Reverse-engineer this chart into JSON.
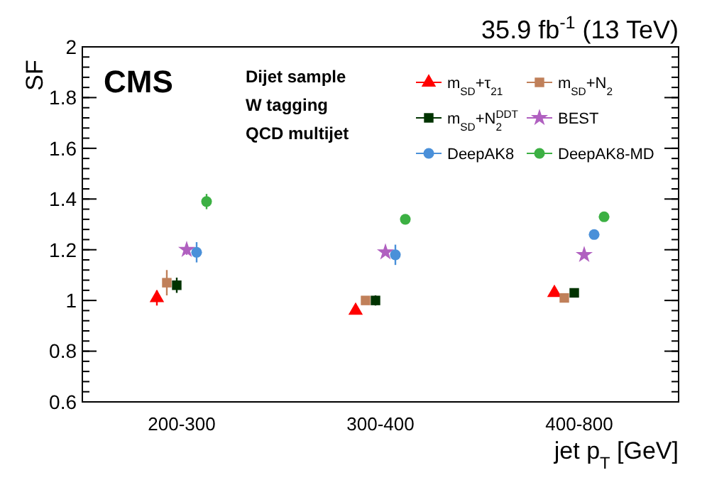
{
  "chart_data": {
    "type": "scatter",
    "title": "35.9 fb$^{-1}$ (13 TeV)",
    "xlabel": "jet p$_{T}$ [GeV]",
    "ylabel": "SF",
    "annotations": [
      "CMS",
      "Dijet sample",
      "W tagging",
      "QCD multijet"
    ],
    "categories": [
      "200-300",
      "300-400",
      "400-800"
    ],
    "ylim": [
      0.6,
      2
    ],
    "yticks": [
      0.6,
      0.8,
      {
        "value": 1,
        "label": "1"
      },
      1.2,
      1.4,
      1.6,
      1.8,
      {
        "value": 2,
        "label": "2"
      }
    ],
    "grid": false,
    "legend": "top right",
    "series": [
      {
        "name": "m$_{SD}$+τ$_{21}$",
        "color": "#ff0000",
        "marker": "triangle",
        "values": [
          1.01,
          0.96,
          1.03
        ],
        "errors": [
          0.03,
          0.01,
          0.01
        ]
      },
      {
        "name": "m$_{SD}$+N$_{2}$",
        "color": "#c0805a",
        "marker": "square",
        "values": [
          1.07,
          1.0,
          1.01
        ],
        "errors": [
          0.05,
          0.01,
          0.01
        ]
      },
      {
        "name": "m$_{SD}$+N$_{2}$$^{DDT}$",
        "color": "#003300",
        "marker": "square",
        "values": [
          1.06,
          1.0,
          1.03
        ],
        "errors": [
          0.03,
          0.02,
          0.01
        ]
      },
      {
        "name": "BEST",
        "color": "#b060c0",
        "marker": "star",
        "values": [
          1.2,
          1.19,
          1.18
        ],
        "errors": [
          0.02,
          0.01,
          0.01
        ]
      },
      {
        "name": "DeepAK8",
        "color": "#4a90d9",
        "marker": "circle",
        "values": [
          1.19,
          1.18,
          1.26
        ],
        "errors": [
          0.04,
          0.04,
          0.01
        ]
      },
      {
        "name": "DeepAK8-MD",
        "color": "#3cb043",
        "marker": "circle",
        "values": [
          1.39,
          1.32,
          1.33
        ],
        "errors": [
          0.03,
          0.01,
          0.01
        ]
      }
    ]
  }
}
